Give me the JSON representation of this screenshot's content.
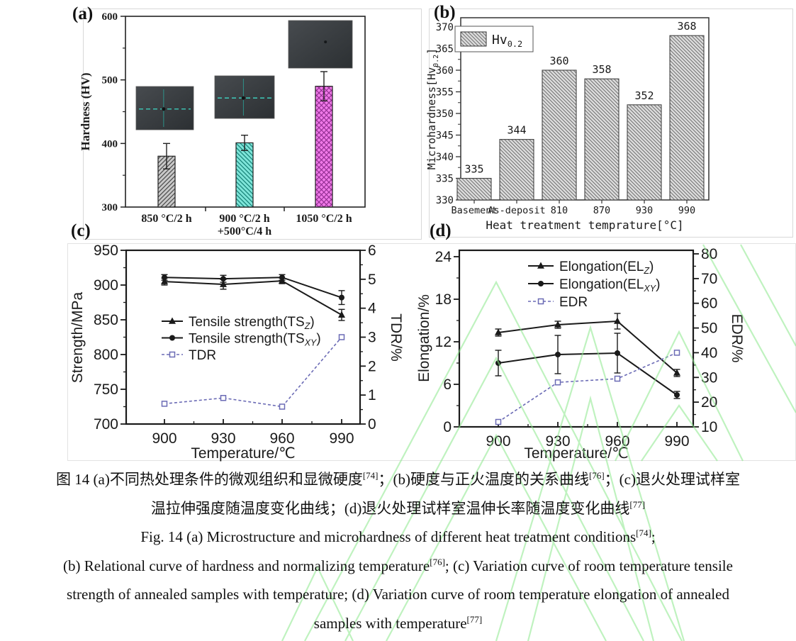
{
  "panels": {
    "a": {
      "label": "(a)"
    },
    "b": {
      "label": "(b)"
    },
    "c": {
      "label": "(c)"
    },
    "d": {
      "label": "(d)"
    }
  },
  "watermark": {
    "color": "#8ce98c"
  },
  "colors": {
    "axis": "#1a1a1a",
    "tdr_edr_series": "#6b6bb5",
    "panel_border": "#d8d8d8"
  },
  "chart_data": [
    {
      "id": "a",
      "type": "bar",
      "title": "",
      "ylabel": "Hardness (HV)",
      "ylim": [
        300,
        600
      ],
      "yticks": [
        300,
        400,
        500,
        600
      ],
      "categories": [
        "850 °C/2 h",
        "900 °C/2 h\n+500°C/4 h",
        "1050 °C/2 h"
      ],
      "values": [
        380,
        401,
        490
      ],
      "errors": [
        20,
        12,
        23
      ],
      "bar_fill": [
        "#c9c9c9",
        "#7ee5d9",
        "#f17ae9"
      ],
      "bar_hatch": [
        "diagonal-up",
        "diagonal-down",
        "crosshatch"
      ],
      "insets": "three dark optical micrographs of indentation microstructures"
    },
    {
      "id": "b",
      "type": "bar",
      "title": "",
      "ylabel": "Microhardness[Hv_{0.2}]",
      "xlabel": "Heat treatment temprature[°C]",
      "ylim": [
        330,
        372
      ],
      "yticks": [
        330,
        335,
        340,
        345,
        350,
        355,
        360,
        365,
        370
      ],
      "categories": [
        "Basement",
        "As-deposit",
        "810",
        "870",
        "930",
        "990"
      ],
      "values": [
        335,
        344,
        360,
        358,
        352,
        368
      ],
      "legend": "Hv_{0.2}",
      "bar_fill": "#dcdcdc",
      "bar_hatch": "diagonal-down"
    },
    {
      "id": "c",
      "type": "line",
      "x": [
        900,
        930,
        960,
        990
      ],
      "xlabel": "Temperature/℃",
      "ylabel_left": "Strength/MPa",
      "ylabel_right": "TDR/%",
      "ylim_left": [
        700,
        950
      ],
      "ylim_right": [
        0,
        6
      ],
      "yticks_left": [
        700,
        750,
        800,
        850,
        900,
        950
      ],
      "yticks_right": [
        0,
        1,
        2,
        3,
        4,
        5,
        6
      ],
      "legend_position": "center-left",
      "series": [
        {
          "name": "Tensile strength(TS_{Z})",
          "axis": "left",
          "marker": "triangle",
          "color": "#1a1a1a",
          "values": [
            905,
            901,
            906,
            857
          ],
          "errors": [
            5,
            7,
            4,
            8
          ]
        },
        {
          "name": "Tensile strength(TS_{XY})",
          "axis": "left",
          "marker": "circle",
          "color": "#1a1a1a",
          "values": [
            911,
            909,
            911,
            882
          ],
          "errors": [
            4,
            5,
            4,
            10
          ]
        },
        {
          "name": "TDR",
          "axis": "right",
          "marker": "square-open",
          "color": "#6b6bb5",
          "dashed": true,
          "values": [
            0.7,
            0.9,
            0.6,
            3.0
          ]
        }
      ]
    },
    {
      "id": "d",
      "type": "line",
      "x": [
        900,
        930,
        960,
        990
      ],
      "xlabel": "Temperature/℃",
      "ylabel_left": "Elongation/%",
      "ylabel_right": "EDR/%",
      "ylim_left": [
        0,
        24
      ],
      "ylim_right": [
        10,
        80
      ],
      "yticks_left": [
        0,
        6,
        12,
        18,
        24
      ],
      "yticks_right": [
        10,
        20,
        30,
        40,
        50,
        60,
        70,
        80
      ],
      "legend_position": "top-center",
      "series": [
        {
          "name": "Elongation(EL_{Z})",
          "axis": "left",
          "marker": "triangle",
          "color": "#1a1a1a",
          "values": [
            13.3,
            14.4,
            14.9,
            7.6
          ],
          "errors": [
            0.5,
            0.5,
            1.1,
            0.5
          ]
        },
        {
          "name": "Elongation(EL_{XY})",
          "axis": "left",
          "marker": "circle",
          "color": "#1a1a1a",
          "values": [
            9.0,
            10.2,
            10.4,
            4.5
          ],
          "errors": [
            1.8,
            2.7,
            2.8,
            0.5
          ]
        },
        {
          "name": "EDR",
          "axis": "right",
          "marker": "square-open",
          "color": "#6b6bb5",
          "dashed": true,
          "values": [
            12,
            28,
            29.5,
            40
          ]
        }
      ]
    }
  ],
  "caption": {
    "lines": [
      {
        "segments": [
          {
            "t": "图 14 (a)不同热处理条件的微观组织和显微硬度"
          },
          {
            "t": "[74]",
            "sup": true
          },
          {
            "t": "；(b)硬度与正火温度的关系曲线"
          },
          {
            "t": "[76]",
            "sup": true
          },
          {
            "t": "；(c)退火处理试样室"
          }
        ]
      },
      {
        "segments": [
          {
            "t": "温拉伸强度随温度变化曲线；(d)退火处理试样室温伸长率随温度变化曲线"
          },
          {
            "t": "[77]",
            "sup": true
          }
        ]
      },
      {
        "segments": [
          {
            "t": "Fig. 14 (a) Microstructure and microhardness of different heat treatment conditions"
          },
          {
            "t": "[74]",
            "sup": true
          },
          {
            "t": ";"
          }
        ]
      },
      {
        "segments": [
          {
            "t": "(b) Relational curve of hardness and normalizing temperature"
          },
          {
            "t": "[76]",
            "sup": true
          },
          {
            "t": "; (c) Variation curve of room temperature tensile"
          }
        ]
      },
      {
        "segments": [
          {
            "t": "strength of annealed samples with temperature; (d) Variation curve of room temperature elongation of annealed"
          }
        ]
      },
      {
        "segments": [
          {
            "t": "samples with temperature"
          },
          {
            "t": "[77]",
            "sup": true
          }
        ]
      }
    ]
  }
}
